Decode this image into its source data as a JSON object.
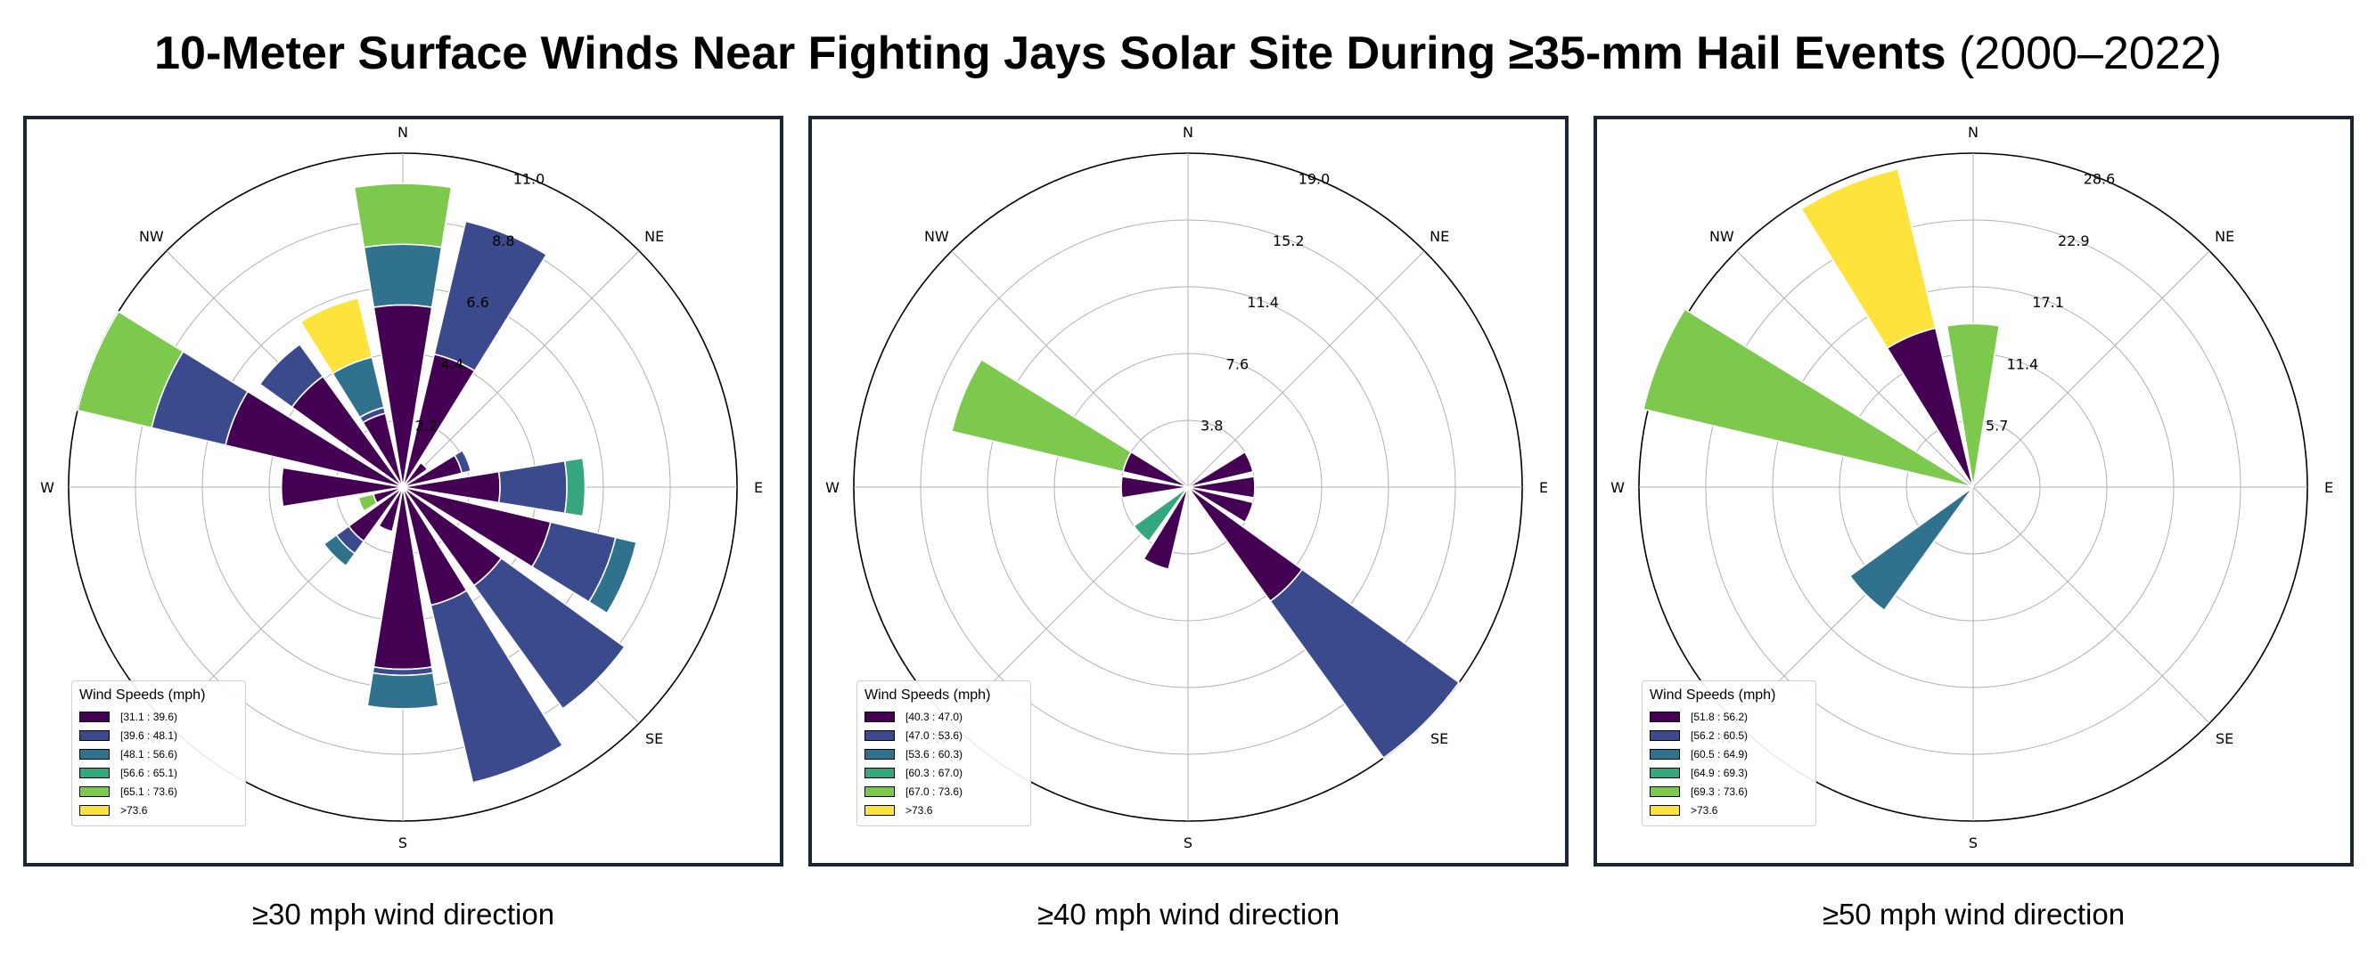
{
  "title": {
    "main": "10-Meter Surface Winds Near Fighting Jays Solar Site During ≥35-mm Hail Events",
    "years": "(2000–2022)"
  },
  "colors": {
    "bins": [
      "#440154",
      "#3b4a8c",
      "#30728e",
      "#35a67e",
      "#7dc94e",
      "#fde33b"
    ],
    "frame": "#1b2431"
  },
  "chart_data": [
    {
      "type": "windrose",
      "caption": "≥30 mph wind direction",
      "directions": [
        "N",
        "NNE",
        "NE",
        "ENE",
        "E",
        "ESE",
        "SE",
        "SSE",
        "S",
        "SSW",
        "SW",
        "WSW",
        "W",
        "WNW",
        "NW",
        "NNW"
      ],
      "compass_labels": [
        "N",
        "NE",
        "E",
        "SE",
        "S",
        "SW",
        "W",
        "NW"
      ],
      "radial_ticks": [
        "2.2",
        "4.4",
        "6.6",
        "8.8",
        "11.0"
      ],
      "rmax": 11.0,
      "legend_title": "Wind Speeds (mph)",
      "legend": [
        "[31.1 : 39.6)",
        "[39.6 : 48.1)",
        "[48.1 : 56.6)",
        "[56.6 : 65.1)",
        "[65.1 : 73.6)",
        ">73.6"
      ],
      "stacks": [
        [
          6.0,
          0.0,
          2.0,
          0.0,
          2.0,
          0.0
        ],
        [
          4.5,
          4.5,
          0.0,
          0.0,
          0.0,
          0.0
        ],
        [
          1.0,
          0.0,
          0.0,
          0.0,
          0.0,
          0.0
        ],
        [
          2.0,
          0.3,
          0.0,
          0.0,
          0.0,
          0.0
        ],
        [
          3.2,
          2.2,
          0.0,
          0.6,
          0.0,
          0.0
        ],
        [
          5.0,
          2.2,
          0.7,
          0.0,
          0.0,
          0.0
        ],
        [
          4.0,
          5.0,
          0.0,
          0.0,
          0.0,
          0.0
        ],
        [
          4.0,
          6.0,
          0.0,
          0.0,
          0.0,
          0.0
        ],
        [
          6.0,
          0.2,
          1.1,
          0.0,
          0.0,
          0.0
        ],
        [
          1.5,
          0.0,
          0.0,
          0.0,
          0.0,
          0.0
        ],
        [
          2.2,
          0.5,
          0.5,
          0.0,
          0.0,
          0.0
        ],
        [
          1.0,
          0.0,
          0.0,
          0.0,
          0.5,
          0.0
        ],
        [
          4.0,
          0.0,
          0.0,
          0.0,
          0.0,
          0.0
        ],
        [
          6.0,
          2.5,
          0.0,
          0.0,
          2.5,
          0.0
        ],
        [
          4.5,
          1.3,
          0.0,
          0.0,
          0.0,
          0.0
        ],
        [
          2.5,
          0.2,
          1.7,
          0.0,
          0.0,
          2.0
        ]
      ]
    },
    {
      "type": "windrose",
      "caption": "≥40 mph wind direction",
      "directions": [
        "N",
        "NNE",
        "NE",
        "ENE",
        "E",
        "ESE",
        "SE",
        "SSE",
        "S",
        "SSW",
        "SW",
        "WSW",
        "W",
        "WNW",
        "NW",
        "NNW"
      ],
      "compass_labels": [
        "N",
        "NE",
        "E",
        "SE",
        "S",
        "SW",
        "W",
        "NW"
      ],
      "radial_ticks": [
        "3.8",
        "7.6",
        "11.4",
        "15.2",
        "19.0"
      ],
      "rmax": 19.0,
      "legend_title": "Wind Speeds (mph)",
      "legend": [
        "[40.3 : 47.0)",
        "[47.0 : 53.6)",
        "[53.6 : 60.3)",
        "[60.3 : 67.0)",
        "[67.0 : 73.6)",
        ">73.6"
      ],
      "stacks": [
        [
          0.0,
          0.0,
          0.0,
          0.0,
          0.0,
          0.0
        ],
        [
          0.0,
          0.0,
          0.0,
          0.0,
          0.0,
          0.0
        ],
        [
          0.0,
          0.0,
          0.0,
          0.0,
          0.0,
          0.0
        ],
        [
          3.8,
          0.0,
          0.0,
          0.0,
          0.0,
          0.0
        ],
        [
          3.8,
          0.0,
          0.0,
          0.0,
          0.0,
          0.0
        ],
        [
          3.8,
          0.0,
          0.0,
          0.0,
          0.0,
          0.0
        ],
        [
          8.0,
          11.0,
          0.0,
          0.0,
          0.0,
          0.0
        ],
        [
          0.0,
          0.0,
          0.0,
          0.0,
          0.0,
          0.0
        ],
        [
          0.0,
          0.0,
          0.0,
          0.0,
          0.0,
          0.0
        ],
        [
          4.8,
          0.0,
          0.0,
          0.0,
          0.0,
          0.0
        ],
        [
          0.0,
          0.0,
          0.0,
          3.8,
          0.0,
          0.0
        ],
        [
          0.0,
          0.0,
          0.0,
          0.0,
          0.0,
          0.0
        ],
        [
          3.8,
          0.0,
          0.0,
          0.0,
          0.0,
          0.0
        ],
        [
          3.8,
          0.0,
          0.0,
          0.0,
          10.0,
          0.0
        ],
        [
          0.0,
          0.0,
          0.0,
          0.0,
          0.0,
          0.0
        ],
        [
          0.0,
          0.0,
          0.0,
          0.0,
          0.0,
          0.0
        ]
      ]
    },
    {
      "type": "windrose",
      "caption": "≥50 mph wind direction",
      "directions": [
        "N",
        "NNE",
        "NE",
        "ENE",
        "E",
        "ESE",
        "SE",
        "SSE",
        "S",
        "SSW",
        "SW",
        "WSW",
        "W",
        "WNW",
        "NW",
        "NNW"
      ],
      "compass_labels": [
        "N",
        "NE",
        "E",
        "SE",
        "S",
        "SW",
        "W",
        "NW"
      ],
      "radial_ticks": [
        "5.7",
        "11.4",
        "17.1",
        "22.9",
        "28.6"
      ],
      "rmax": 28.6,
      "legend_title": "Wind Speeds (mph)",
      "legend": [
        "[51.8 : 56.2)",
        "[56.2 : 60.5)",
        "[60.5 : 64.9)",
        "[64.9 : 69.3)",
        "[69.3 : 73.6)",
        ">73.6"
      ],
      "stacks": [
        [
          0.0,
          0.0,
          0.0,
          0.0,
          14.0,
          0.0
        ],
        [
          0.0,
          0.0,
          0.0,
          0.0,
          0.0,
          0.0
        ],
        [
          0.0,
          0.0,
          0.0,
          0.0,
          0.0,
          0.0
        ],
        [
          0.0,
          0.0,
          0.0,
          0.0,
          0.0,
          0.0
        ],
        [
          0.0,
          0.0,
          0.0,
          0.0,
          0.0,
          0.0
        ],
        [
          0.0,
          0.0,
          0.0,
          0.0,
          0.0,
          0.0
        ],
        [
          0.0,
          0.0,
          0.0,
          0.0,
          0.0,
          0.0
        ],
        [
          0.0,
          0.0,
          0.0,
          0.0,
          0.0,
          0.0
        ],
        [
          0.0,
          0.0,
          0.0,
          0.0,
          0.0,
          0.0
        ],
        [
          0.0,
          0.0,
          0.0,
          0.0,
          0.0,
          0.0
        ],
        [
          0.0,
          0.0,
          13.0,
          0.0,
          0.0,
          0.0
        ],
        [
          0.0,
          0.0,
          0.0,
          0.0,
          0.0,
          0.0
        ],
        [
          0.0,
          0.0,
          0.0,
          0.0,
          0.0,
          0.0
        ],
        [
          0.0,
          0.0,
          0.0,
          0.0,
          29.0,
          0.0
        ],
        [
          0.0,
          0.0,
          0.0,
          0.0,
          0.0,
          0.0
        ],
        [
          14.0,
          0.0,
          0.0,
          0.0,
          0.0,
          14.0
        ]
      ]
    }
  ]
}
